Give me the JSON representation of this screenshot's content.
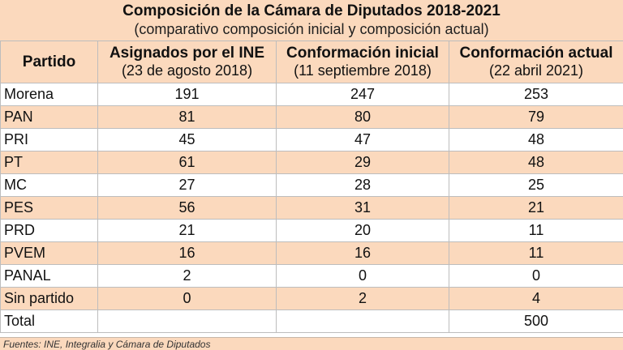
{
  "title": "Composición de la Cámara de Diputados 2018-2021",
  "subtitle": "(comparativo composición inicial y composición actual)",
  "columns": [
    {
      "label": "Partido",
      "sub": ""
    },
    {
      "label": "Asignados por el INE",
      "sub": "(23 de agosto 2018)"
    },
    {
      "label": "Conformación inicial",
      "sub": "(11 septiembre 2018)"
    },
    {
      "label": "Conformación actual",
      "sub": "(22 abril 2021)"
    }
  ],
  "rows": [
    {
      "party": "Morena",
      "asignados": "191",
      "inicial": "247",
      "actual": "253"
    },
    {
      "party": "PAN",
      "asignados": "81",
      "inicial": "80",
      "actual": "79"
    },
    {
      "party": "PRI",
      "asignados": "45",
      "inicial": "47",
      "actual": "48"
    },
    {
      "party": "PT",
      "asignados": "61",
      "inicial": "29",
      "actual": "48"
    },
    {
      "party": "MC",
      "asignados": "27",
      "inicial": "28",
      "actual": "25"
    },
    {
      "party": "PES",
      "asignados": "56",
      "inicial": "31",
      "actual": "21"
    },
    {
      "party": "PRD",
      "asignados": "21",
      "inicial": "20",
      "actual": "11"
    },
    {
      "party": "PVEM",
      "asignados": "16",
      "inicial": "16",
      "actual": "11"
    },
    {
      "party": "PANAL",
      "asignados": "2",
      "inicial": "0",
      "actual": "0"
    },
    {
      "party": "Sin partido",
      "asignados": "0",
      "inicial": "2",
      "actual": "4"
    },
    {
      "party": "Total",
      "asignados": "",
      "inicial": "",
      "actual": "500"
    }
  ],
  "source": "Fuentes: INE, Integralia y Cámara de Diputados",
  "colors": {
    "header_bg": "#fbd9bd",
    "row_alt_bg": "#fbd9bd",
    "grid": "#bdbdbd"
  }
}
